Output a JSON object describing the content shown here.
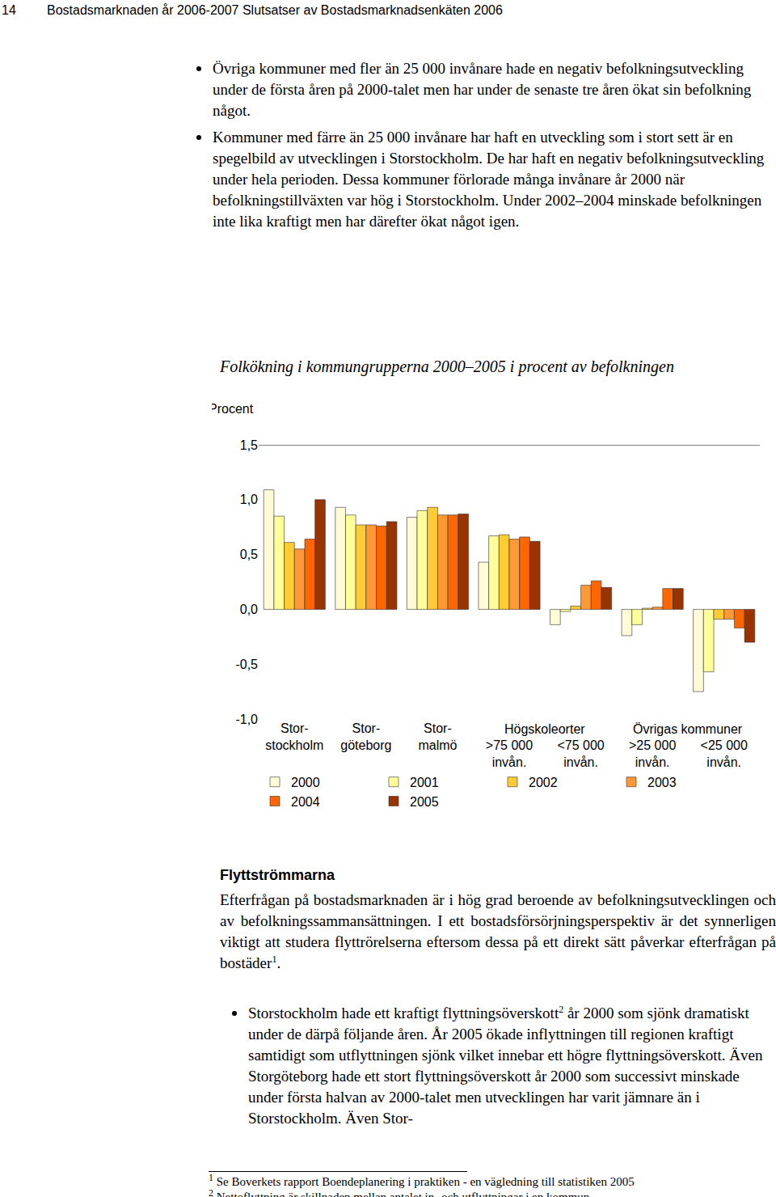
{
  "header": {
    "page": "14",
    "title": "Bostadsmarknaden år 2006-2007 Slutsatser av Bostadsmarknadsenkäten 2006"
  },
  "bullets_top": [
    "Övriga kommuner med fler än 25 000 invånare hade en negativ befolkningsutveckling under de första åren på 2000-talet men har under de senaste tre åren ökat sin befolkning något.",
    "Kommuner med färre än 25 000 invånare har haft en utveckling som i stort sett är en spegelbild av utvecklingen i Storstockholm. De har haft en negativ befolkningsutveckling under hela perioden. Dessa kommuner förlorade många invånare år 2000 när befolkningstillväxten var hög i Storstockholm. Under 2002–2004 minskade befolkningen inte lika kraftigt men har därefter ökat något igen."
  ],
  "chart_data": {
    "type": "bar",
    "title": "Folkökning i kommungrupperna 2000–2005 i procent av befolkningen",
    "y_label": "Procent",
    "categories": [
      "Stor-\nstockholm",
      "Stor-\ngöteborg",
      "Stor-\nmalmö",
      ">75 000\ninvån.",
      "<75 000\ninvån.",
      ">25 000\ninvån.",
      "<25 000\ninvån."
    ],
    "category_groups": [
      {
        "label": "Högskoleorter",
        "categories": [
          ">75 000\ninvån.",
          "<75 000\ninvån."
        ]
      },
      {
        "label": "Övrigas kommuner",
        "categories": [
          ">25 000\ninvån.",
          "<25 000\ninvån."
        ]
      }
    ],
    "series": [
      {
        "name": "2000",
        "color": "#fffbd6",
        "values": [
          1.09,
          0.93,
          0.84,
          0.43,
          -0.14,
          -0.24,
          -0.75
        ]
      },
      {
        "name": "2001",
        "color": "#ffff99",
        "values": [
          0.85,
          0.86,
          0.9,
          0.67,
          -0.02,
          -0.14,
          -0.57
        ]
      },
      {
        "name": "2002",
        "color": "#ffcc33",
        "values": [
          0.61,
          0.77,
          0.93,
          0.68,
          0.03,
          0.01,
          -0.09
        ]
      },
      {
        "name": "2003",
        "color": "#ff9933",
        "values": [
          0.55,
          0.77,
          0.86,
          0.64,
          0.22,
          0.02,
          -0.09
        ]
      },
      {
        "name": "2004",
        "color": "#ff6600",
        "values": [
          0.64,
          0.76,
          0.86,
          0.66,
          0.26,
          0.19,
          -0.17
        ]
      },
      {
        "name": "2005",
        "color": "#993300",
        "values": [
          1.0,
          0.8,
          0.87,
          0.62,
          0.2,
          0.19,
          -0.3
        ]
      }
    ],
    "ylim": [
      -1.0,
      1.5
    ],
    "yticks": [
      {
        "value": -1.0,
        "label": "-1,0"
      },
      {
        "value": -0.5,
        "label": "-0,5"
      },
      {
        "value": 0.0,
        "label": "0,0"
      },
      {
        "value": 0.5,
        "label": "0,5"
      },
      {
        "value": 1.0,
        "label": "1,0"
      },
      {
        "value": 1.5,
        "label": "1,5"
      }
    ],
    "grid": false,
    "legend": "bottom"
  },
  "section": {
    "heading": "Flyttströmmarna",
    "paragraph": [
      {
        "text": "Efterfrågan på bostadsmarknaden är i hög grad beroende av befolkningsutvecklingen och av befolkningssammansättningen. I ett bostadsförsörjningsperspektiv är det synnerligen viktigt att studera flyttrörelserna eftersom dessa på ett direkt sätt påverkar efterfrågan på bostäder"
      },
      {
        "sup": "1"
      },
      {
        "text": "."
      }
    ],
    "bullet": [
      {
        "text": "Storstockholm hade ett kraftigt flyttningsöverskott"
      },
      {
        "sup": "2"
      },
      {
        "text": " år 2000 som sjönk dramatiskt under de därpå följande åren. År 2005 ökade inflyttningen till regionen kraftigt samtidigt som utflyttningen sjönk vilket innebar ett högre flyttningsöverskott. Även Storgöteborg hade ett stort flyttningsöverskott år 2000 som successivt minskade under första halvan av 2000-talet men utvecklingen har varit jämnare än i Storstockholm. Även Stor-"
      }
    ]
  },
  "footnotes": [
    {
      "mark": "1",
      "text": "Se Boverkets rapport Boendeplanering i praktiken - en vägledning till statistiken 2005"
    },
    {
      "mark": "2",
      "text": "Nettoflyttning är skillnaden mellan antalet in- och utflyttningar i en kommun."
    }
  ]
}
